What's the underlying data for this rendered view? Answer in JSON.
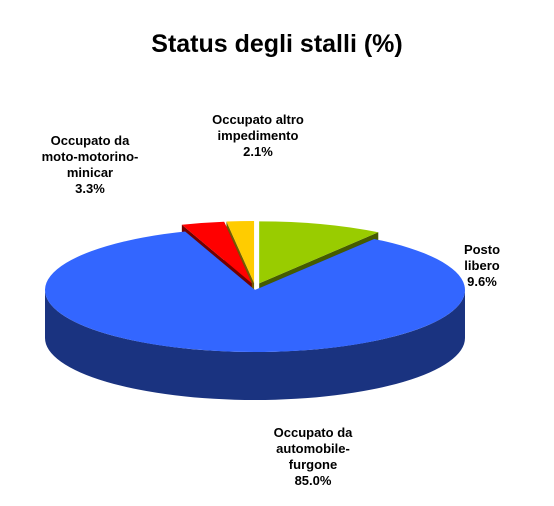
{
  "chart_data": {
    "type": "pie3d",
    "title": "Status degli stalli (%)",
    "categories": [
      "Posto libero",
      "Occupato da\nautomobile-\nfurgone",
      "Occupato da\nmoto-motorino-\nminicar",
      "Occupato altro\nimpedimento"
    ],
    "values": [
      9.6,
      85.0,
      3.3,
      2.1
    ],
    "value_labels": [
      "9.6%",
      "85.0%",
      "3.3%",
      "2.1%"
    ],
    "colors": [
      "#99cc00",
      "#3366ff",
      "#ff0000",
      "#ffcc00"
    ]
  }
}
